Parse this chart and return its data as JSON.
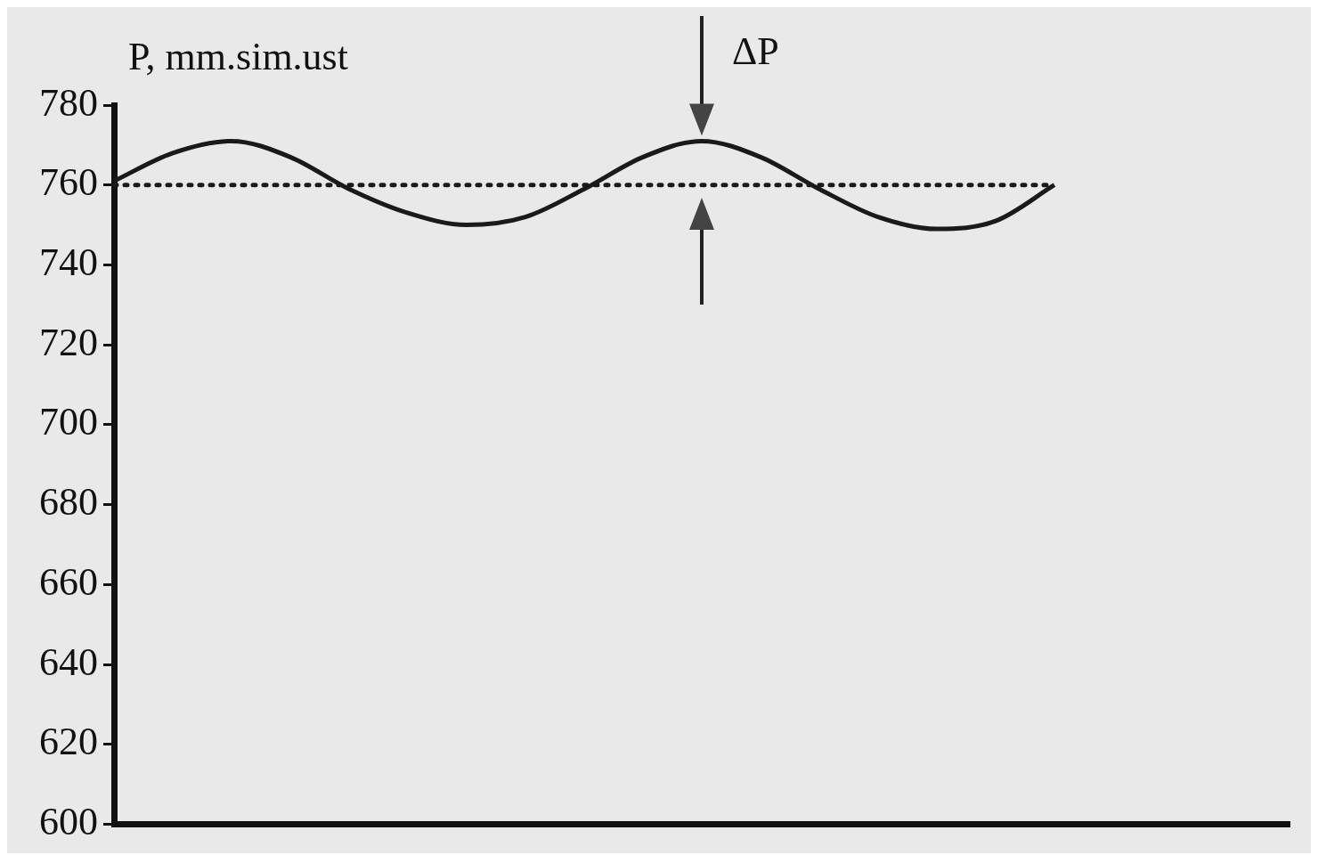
{
  "chart_data": {
    "type": "line",
    "ylabel": "P, mm.sim.ust",
    "annotations": [
      "ΔP"
    ],
    "categories": [
      null,
      null,
      null,
      null,
      null,
      null,
      null,
      null,
      null,
      null,
      null,
      null,
      null,
      null,
      null,
      null,
      null,
      null,
      null,
      null,
      null
    ],
    "series": [
      {
        "color": "#1a1a1a",
        "values": [
          761,
          768,
          771,
          767,
          759,
          753,
          750,
          752,
          759,
          767,
          771,
          767,
          759,
          752,
          749,
          751,
          760,
          null,
          null,
          null,
          null
        ]
      }
    ],
    "ylim": [
      600,
      780
    ],
    "yticks": [
      600,
      620,
      640,
      660,
      680,
      700,
      720,
      740,
      760,
      780
    ],
    "ref_lines": [
      {
        "axis": "y",
        "value": 760,
        "color": "#1a1a1a",
        "line_style": "dotted"
      }
    ],
    "tick_labels": "y",
    "grid": false,
    "legend": false,
    "marker": "none",
    "line_style": "solid"
  }
}
